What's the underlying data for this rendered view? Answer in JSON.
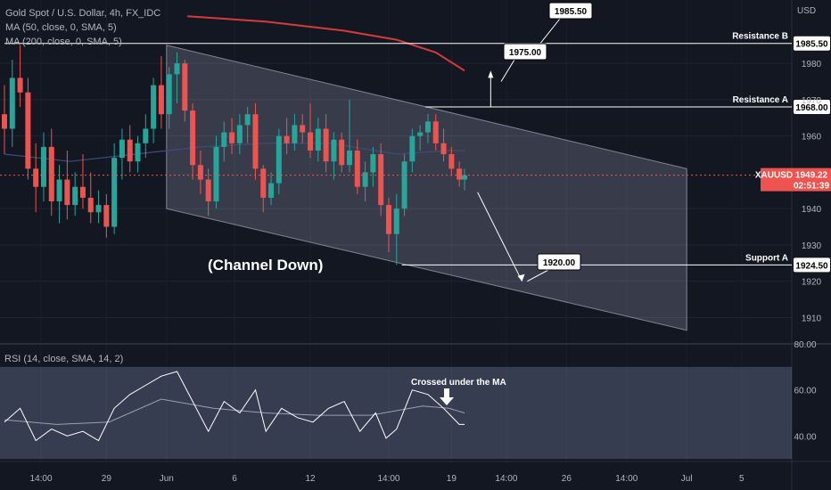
{
  "chart_data": {
    "type": "candlestick",
    "title": "Gold Spot / U.S. Dollar, 4h, FX_IDC",
    "ma_legend": [
      "MA (50, close, 0, SMA, 5)",
      "MA (200, close, 0, SMA, 5)"
    ],
    "currency": "USD",
    "price_ylim": [
      1903,
      1995
    ],
    "price_ticks": [
      1910,
      1920,
      1930,
      1940,
      1960,
      1970,
      1980
    ],
    "x_ticks": [
      "14:00",
      "29",
      "Jun",
      "6",
      "12",
      "14:00",
      "19",
      "14:00",
      "26",
      "14:00",
      "Jul",
      "5"
    ],
    "x_tick_pos": [
      14,
      39,
      62,
      88,
      117,
      147,
      171,
      192,
      215,
      238,
      261,
      282
    ],
    "last_price": {
      "symbol": "XAUUSD",
      "price": "1949.22",
      "countdown": "02:51:39",
      "value": 1949.22
    },
    "levels": [
      {
        "name": "Resistance B",
        "label": "Resistance B",
        "value": 1985.5,
        "value_label": "1985.50",
        "from_bar": 0
      },
      {
        "name": "Resistance A",
        "label": "Resistance A",
        "value": 1968.0,
        "value_label": "1968.00",
        "from_bar": 161
      },
      {
        "name": "Support A",
        "label": "Support A",
        "value": 1924.5,
        "value_label": "1924.50",
        "from_bar": 152
      }
    ],
    "channel": {
      "label": "(Channel Down)",
      "upper": [
        [
          62,
          1985.0
        ],
        [
          261,
          1951.0
        ]
      ],
      "lower": [
        [
          62,
          1940.0
        ],
        [
          261,
          1906.5
        ]
      ]
    },
    "callouts": [
      {
        "label": "1985.50",
        "value": 1985.5,
        "anchor_bar": 205
      },
      {
        "label": "1975.00",
        "value": 1975.0,
        "anchor_bar": 190
      },
      {
        "label": "1920.00",
        "value": 1920.0,
        "anchor_bar": 200
      }
    ],
    "projection": [
      [
        181,
        1944.5
      ],
      [
        198,
        1920.0
      ]
    ],
    "candles": [
      {
        "bar": 0,
        "o": 1966,
        "h": 1974,
        "l": 1955,
        "c": 1962
      },
      {
        "bar": 3,
        "o": 1962,
        "h": 1981,
        "l": 1957,
        "c": 1976
      },
      {
        "bar": 6,
        "o": 1976,
        "h": 1985,
        "l": 1968,
        "c": 1972
      },
      {
        "bar": 9,
        "o": 1972,
        "h": 1976,
        "l": 1948,
        "c": 1951
      },
      {
        "bar": 12,
        "o": 1951,
        "h": 1958,
        "l": 1939,
        "c": 1946
      },
      {
        "bar": 15,
        "o": 1946,
        "h": 1961,
        "l": 1942,
        "c": 1957
      },
      {
        "bar": 18,
        "o": 1957,
        "h": 1962,
        "l": 1938,
        "c": 1942
      },
      {
        "bar": 21,
        "o": 1942,
        "h": 1952,
        "l": 1936,
        "c": 1948
      },
      {
        "bar": 24,
        "o": 1948,
        "h": 1956,
        "l": 1937,
        "c": 1941
      },
      {
        "bar": 27,
        "o": 1941,
        "h": 1950,
        "l": 1938,
        "c": 1946
      },
      {
        "bar": 30,
        "o": 1946,
        "h": 1955,
        "l": 1940,
        "c": 1943
      },
      {
        "bar": 33,
        "o": 1943,
        "h": 1950,
        "l": 1936,
        "c": 1939
      },
      {
        "bar": 36,
        "o": 1939,
        "h": 1945,
        "l": 1936,
        "c": 1941
      },
      {
        "bar": 39,
        "o": 1941,
        "h": 1944,
        "l": 1932,
        "c": 1935
      },
      {
        "bar": 42,
        "o": 1935,
        "h": 1958,
        "l": 1933,
        "c": 1954
      },
      {
        "bar": 45,
        "o": 1954,
        "h": 1962,
        "l": 1948,
        "c": 1959
      },
      {
        "bar": 48,
        "o": 1959,
        "h": 1963,
        "l": 1950,
        "c": 1953
      },
      {
        "bar": 51,
        "o": 1953,
        "h": 1960,
        "l": 1950,
        "c": 1958
      },
      {
        "bar": 54,
        "o": 1958,
        "h": 1966,
        "l": 1954,
        "c": 1962
      },
      {
        "bar": 57,
        "o": 1962,
        "h": 1976,
        "l": 1958,
        "c": 1974
      },
      {
        "bar": 60,
        "o": 1974,
        "h": 1982,
        "l": 1962,
        "c": 1966
      },
      {
        "bar": 63,
        "o": 1966,
        "h": 1979,
        "l": 1962,
        "c": 1977
      },
      {
        "bar": 66,
        "o": 1977,
        "h": 1983,
        "l": 1969,
        "c": 1980
      },
      {
        "bar": 69,
        "o": 1980,
        "h": 1981,
        "l": 1964,
        "c": 1967
      },
      {
        "bar": 72,
        "o": 1967,
        "h": 1969,
        "l": 1948,
        "c": 1952
      },
      {
        "bar": 75,
        "o": 1952,
        "h": 1956,
        "l": 1944,
        "c": 1948
      },
      {
        "bar": 78,
        "o": 1948,
        "h": 1951,
        "l": 1938,
        "c": 1942
      },
      {
        "bar": 81,
        "o": 1942,
        "h": 1960,
        "l": 1940,
        "c": 1957
      },
      {
        "bar": 84,
        "o": 1957,
        "h": 1964,
        "l": 1953,
        "c": 1961
      },
      {
        "bar": 87,
        "o": 1961,
        "h": 1965,
        "l": 1955,
        "c": 1958
      },
      {
        "bar": 90,
        "o": 1958,
        "h": 1966,
        "l": 1955,
        "c": 1963
      },
      {
        "bar": 93,
        "o": 1963,
        "h": 1968,
        "l": 1958,
        "c": 1966
      },
      {
        "bar": 96,
        "o": 1966,
        "h": 1969,
        "l": 1948,
        "c": 1951
      },
      {
        "bar": 99,
        "o": 1951,
        "h": 1952,
        "l": 1939,
        "c": 1943
      },
      {
        "bar": 102,
        "o": 1943,
        "h": 1950,
        "l": 1941,
        "c": 1947
      },
      {
        "bar": 105,
        "o": 1947,
        "h": 1962,
        "l": 1944,
        "c": 1960
      },
      {
        "bar": 108,
        "o": 1960,
        "h": 1965,
        "l": 1955,
        "c": 1958
      },
      {
        "bar": 111,
        "o": 1958,
        "h": 1966,
        "l": 1956,
        "c": 1963
      },
      {
        "bar": 114,
        "o": 1963,
        "h": 1966,
        "l": 1958,
        "c": 1961
      },
      {
        "bar": 117,
        "o": 1961,
        "h": 1969,
        "l": 1954,
        "c": 1956
      },
      {
        "bar": 120,
        "o": 1956,
        "h": 1965,
        "l": 1953,
        "c": 1962
      },
      {
        "bar": 123,
        "o": 1962,
        "h": 1966,
        "l": 1950,
        "c": 1953
      },
      {
        "bar": 126,
        "o": 1953,
        "h": 1961,
        "l": 1948,
        "c": 1959
      },
      {
        "bar": 129,
        "o": 1959,
        "h": 1961,
        "l": 1950,
        "c": 1952
      },
      {
        "bar": 132,
        "o": 1952,
        "h": 1970,
        "l": 1950,
        "c": 1956
      },
      {
        "bar": 135,
        "o": 1956,
        "h": 1959,
        "l": 1944,
        "c": 1946
      },
      {
        "bar": 138,
        "o": 1946,
        "h": 1953,
        "l": 1942,
        "c": 1950
      },
      {
        "bar": 141,
        "o": 1950,
        "h": 1957,
        "l": 1946,
        "c": 1955
      },
      {
        "bar": 144,
        "o": 1955,
        "h": 1958,
        "l": 1938,
        "c": 1941
      },
      {
        "bar": 147,
        "o": 1941,
        "h": 1943,
        "l": 1928,
        "c": 1933
      },
      {
        "bar": 150,
        "o": 1933,
        "h": 1944,
        "l": 1924.5,
        "c": 1940
      },
      {
        "bar": 153,
        "o": 1940,
        "h": 1955,
        "l": 1938,
        "c": 1953
      },
      {
        "bar": 156,
        "o": 1953,
        "h": 1962,
        "l": 1950,
        "c": 1960
      },
      {
        "bar": 159,
        "o": 1960,
        "h": 1963,
        "l": 1956,
        "c": 1961
      },
      {
        "bar": 162,
        "o": 1961,
        "h": 1966,
        "l": 1958,
        "c": 1964
      },
      {
        "bar": 165,
        "o": 1964,
        "h": 1966,
        "l": 1956,
        "c": 1958
      },
      {
        "bar": 168,
        "o": 1958,
        "h": 1962,
        "l": 1953,
        "c": 1955
      },
      {
        "bar": 171,
        "o": 1955,
        "h": 1957,
        "l": 1949,
        "c": 1951
      },
      {
        "bar": 174,
        "o": 1951,
        "h": 1953,
        "l": 1946,
        "c": 1948
      },
      {
        "bar": 176,
        "o": 1948,
        "h": 1951,
        "l": 1945,
        "c": 1949.22
      }
    ],
    "ma50": [
      [
        0,
        1955
      ],
      [
        25,
        1953
      ],
      [
        50,
        1955
      ],
      [
        75,
        1957
      ],
      [
        100,
        1958
      ],
      [
        125,
        1958
      ],
      [
        150,
        1955
      ],
      [
        170,
        1956
      ],
      [
        176,
        1956
      ]
    ],
    "ma200": [
      [
        70,
        1993
      ],
      [
        100,
        1991.5
      ],
      [
        130,
        1989
      ],
      [
        150,
        1986.5
      ],
      [
        165,
        1983
      ],
      [
        176,
        1978
      ]
    ],
    "rsi": {
      "legend": "RSI (14, close, SMA, 14, 2)",
      "annotation": "Crossed under the MA",
      "ylim": [
        32,
        80
      ],
      "ticks": [
        40,
        60,
        80
      ],
      "band": [
        30,
        70
      ],
      "line": [
        [
          0,
          46
        ],
        [
          6,
          52
        ],
        [
          12,
          38
        ],
        [
          18,
          43
        ],
        [
          24,
          40
        ],
        [
          30,
          42
        ],
        [
          36,
          38
        ],
        [
          42,
          52
        ],
        [
          48,
          58
        ],
        [
          54,
          62
        ],
        [
          60,
          66
        ],
        [
          66,
          68
        ],
        [
          72,
          55
        ],
        [
          78,
          42
        ],
        [
          84,
          55
        ],
        [
          90,
          50
        ],
        [
          96,
          60
        ],
        [
          100,
          42
        ],
        [
          106,
          52
        ],
        [
          112,
          48
        ],
        [
          118,
          46
        ],
        [
          124,
          52
        ],
        [
          130,
          55
        ],
        [
          136,
          42
        ],
        [
          142,
          50
        ],
        [
          146,
          39
        ],
        [
          150,
          43
        ],
        [
          156,
          60
        ],
        [
          162,
          58
        ],
        [
          168,
          52
        ],
        [
          174,
          45
        ],
        [
          176,
          45
        ]
      ],
      "ma": [
        [
          0,
          47
        ],
        [
          20,
          45
        ],
        [
          40,
          46
        ],
        [
          60,
          56
        ],
        [
          80,
          52
        ],
        [
          100,
          50
        ],
        [
          120,
          49
        ],
        [
          140,
          49
        ],
        [
          160,
          53
        ],
        [
          170,
          52
        ],
        [
          176,
          50
        ]
      ]
    }
  }
}
